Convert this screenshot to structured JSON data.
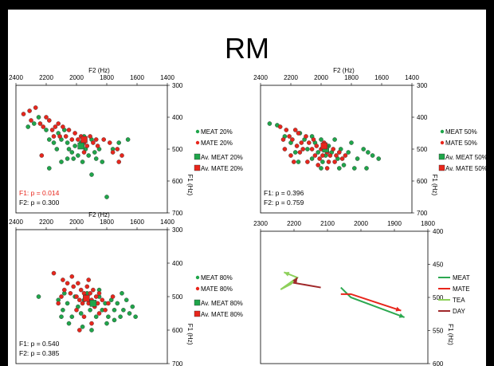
{
  "title": "RM",
  "chart_data": [
    {
      "type": "scatter",
      "xlabel": "F2 (Hz)",
      "ylabel": "F1 (Hz)",
      "xlim": [
        2400,
        1400
      ],
      "ylim": [
        300,
        700
      ],
      "xticks": [
        2400,
        2200,
        2000,
        1800,
        1600,
        1400
      ],
      "yticks": [
        300,
        400,
        500,
        600,
        700
      ],
      "legend": [
        "MEAT 20%",
        "MATE 20%",
        "Av. MEAT 20%",
        "Av. MATE 20%"
      ],
      "stats": [
        {
          "label": "F1: p = 0.014",
          "color": "#e8261c"
        },
        {
          "label": "F2: p = 0.300",
          "color": "#000000"
        }
      ],
      "series": [
        {
          "name": "MEAT 20%",
          "points": [
            [
              2320,
              430
            ],
            [
              2280,
              420
            ],
            [
              2250,
              400
            ],
            [
              2200,
              440
            ],
            [
              2180,
              470
            ],
            [
              2150,
              480
            ],
            [
              2120,
              450
            ],
            [
              2100,
              470
            ],
            [
              2080,
              440
            ],
            [
              2060,
              480
            ],
            [
              2050,
              500
            ],
            [
              2030,
              510
            ],
            [
              2010,
              490
            ],
            [
              1990,
              520
            ],
            [
              1970,
              480
            ],
            [
              1960,
              540
            ],
            [
              1940,
              500
            ],
            [
              1920,
              520
            ],
            [
              1900,
              470
            ],
            [
              1880,
              510
            ],
            [
              1870,
              530
            ],
            [
              1850,
              500
            ],
            [
              1830,
              540
            ],
            [
              1760,
              500
            ],
            [
              1720,
              480
            ],
            [
              1660,
              470
            ],
            [
              2180,
              560
            ],
            [
              2020,
              530
            ],
            [
              1900,
              580
            ],
            [
              1800,
              650
            ],
            [
              2100,
              540
            ],
            [
              1950,
              460
            ],
            [
              2060,
              530
            ],
            [
              2130,
              500
            ]
          ]
        },
        {
          "name": "MATE 20%",
          "points": [
            [
              2350,
              390
            ],
            [
              2310,
              380
            ],
            [
              2300,
              410
            ],
            [
              2270,
              370
            ],
            [
              2240,
              420
            ],
            [
              2220,
              430
            ],
            [
              2200,
              400
            ],
            [
              2180,
              410
            ],
            [
              2160,
              440
            ],
            [
              2140,
              430
            ],
            [
              2120,
              420
            ],
            [
              2110,
              460
            ],
            [
              2090,
              430
            ],
            [
              2070,
              460
            ],
            [
              2050,
              440
            ],
            [
              2030,
              470
            ],
            [
              2010,
              450
            ],
            [
              1990,
              470
            ],
            [
              1970,
              460
            ],
            [
              1950,
              480
            ],
            [
              1930,
              490
            ],
            [
              1910,
              460
            ],
            [
              1890,
              480
            ],
            [
              1870,
              470
            ],
            [
              1860,
              490
            ],
            [
              1780,
              480
            ],
            [
              1760,
              510
            ],
            [
              1730,
              500
            ],
            [
              1700,
              520
            ],
            [
              1720,
              540
            ],
            [
              2230,
              520
            ],
            [
              2150,
              460
            ],
            [
              1950,
              510
            ],
            [
              1820,
              470
            ]
          ]
        },
        {
          "name": "Av. MEAT 20%",
          "points": [
            [
              1970,
              490
            ]
          ]
        },
        {
          "name": "Av. MATE 20%",
          "points": [
            [
              1950,
              470
            ]
          ]
        }
      ]
    },
    {
      "type": "scatter",
      "xlabel": "F2 (Hz)",
      "ylabel": "F1 (Hz)",
      "xlim": [
        2400,
        1400
      ],
      "ylim": [
        300,
        700
      ],
      "xticks": [
        2400,
        2200,
        2000,
        1800,
        1600,
        1400
      ],
      "yticks": [
        300,
        400,
        500,
        600,
        700
      ],
      "legend": [
        "MEAT 50%",
        "MATE 50%",
        "Av. MEAT 50%",
        "Av. MATE 50%"
      ],
      "stats": [
        {
          "label": "F1: p = 0.396",
          "color": "#000000"
        },
        {
          "label": "F2: p = 0.759",
          "color": "#000000"
        }
      ],
      "series": [
        {
          "name": "MEAT 50%",
          "points": [
            [
              2340,
              420
            ],
            [
              2290,
              425
            ],
            [
              2240,
              460
            ],
            [
              2200,
              480
            ],
            [
              2170,
              510
            ],
            [
              2140,
              450
            ],
            [
              2110,
              470
            ],
            [
              2090,
              500
            ],
            [
              2060,
              530
            ],
            [
              2040,
              480
            ],
            [
              2020,
              510
            ],
            [
              2000,
              470
            ],
            [
              1990,
              540
            ],
            [
              1970,
              520
            ],
            [
              1950,
              490
            ],
            [
              1930,
              510
            ],
            [
              1910,
              470
            ],
            [
              1890,
              530
            ],
            [
              1870,
              500
            ],
            [
              1850,
              550
            ],
            [
              1820,
              510
            ],
            [
              1800,
              480
            ],
            [
              1760,
              530
            ],
            [
              1720,
              500
            ],
            [
              1690,
              510
            ],
            [
              1660,
              520
            ],
            [
              2150,
              540
            ],
            [
              2000,
              560
            ],
            [
              1880,
              560
            ],
            [
              2060,
              460
            ],
            [
              1780,
              560
            ],
            [
              1620,
              530
            ],
            [
              1700,
              560
            ]
          ]
        },
        {
          "name": "MATE 50%",
          "points": [
            [
              2270,
              430
            ],
            [
              2250,
              470
            ],
            [
              2230,
              440
            ],
            [
              2210,
              460
            ],
            [
              2190,
              470
            ],
            [
              2170,
              440
            ],
            [
              2160,
              490
            ],
            [
              2150,
              450
            ],
            [
              2130,
              480
            ],
            [
              2120,
              500
            ],
            [
              2100,
              460
            ],
            [
              2080,
              480
            ],
            [
              2060,
              500
            ],
            [
              2050,
              470
            ],
            [
              2040,
              520
            ],
            [
              2030,
              490
            ],
            [
              2010,
              530
            ],
            [
              2000,
              500
            ],
            [
              1990,
              520
            ],
            [
              1980,
              480
            ],
            [
              1960,
              510
            ],
            [
              1950,
              540
            ],
            [
              1940,
              520
            ],
            [
              1920,
              500
            ],
            [
              1910,
              540
            ],
            [
              1900,
              520
            ],
            [
              1880,
              510
            ],
            [
              1860,
              530
            ],
            [
              1840,
              520
            ],
            [
              2200,
              520
            ],
            [
              2180,
              540
            ],
            [
              2140,
              510
            ],
            [
              2090,
              540
            ],
            [
              2020,
              550
            ],
            [
              1960,
              560
            ],
            [
              2240,
              500
            ]
          ]
        },
        {
          "name": "Av. MEAT 50%",
          "points": [
            [
              1970,
              500
            ]
          ]
        },
        {
          "name": "Av. MATE 50%",
          "points": [
            [
              1980,
              490
            ]
          ]
        }
      ]
    },
    {
      "type": "scatter",
      "xlabel": "F2 (Hz)",
      "ylabel": "F1 (Hz)",
      "xlim": [
        2400,
        1400
      ],
      "ylim": [
        300,
        700
      ],
      "xticks": [
        2400,
        2200,
        2000,
        1800,
        1600,
        1400
      ],
      "yticks": [
        300,
        400,
        500,
        600,
        700
      ],
      "legend": [
        "MEAT 80%",
        "MATE 80%",
        "Av. MEAT 80%",
        "Av. MATE 80%"
      ],
      "stats": [
        {
          "label": "F1: p = 0.540",
          "color": "#000000"
        },
        {
          "label": "F2: p = 0.385",
          "color": "#000000"
        }
      ],
      "series": [
        {
          "name": "MEAT 80%",
          "points": [
            [
              2250,
              500
            ],
            [
              2120,
              510
            ],
            [
              2090,
              540
            ],
            [
              2060,
              520
            ],
            [
              2030,
              560
            ],
            [
              2010,
              500
            ],
            [
              1990,
              530
            ],
            [
              1970,
              550
            ],
            [
              1950,
              510
            ],
            [
              1930,
              490
            ],
            [
              1910,
              540
            ],
            [
              1890,
              520
            ],
            [
              1870,
              560
            ],
            [
              1850,
              500
            ],
            [
              1830,
              540
            ],
            [
              1810,
              520
            ],
            [
              1790,
              560
            ],
            [
              1770,
              510
            ],
            [
              1750,
              540
            ],
            [
              1730,
              520
            ],
            [
              1710,
              560
            ],
            [
              1690,
              540
            ],
            [
              1670,
              510
            ],
            [
              1650,
              550
            ],
            [
              1630,
              530
            ],
            [
              1610,
              560
            ],
            [
              1800,
              580
            ],
            [
              1750,
              570
            ],
            [
              2050,
              580
            ],
            [
              1900,
              600
            ],
            [
              2100,
              560
            ],
            [
              1960,
              590
            ],
            [
              1700,
              490
            ],
            [
              1850,
              480
            ],
            [
              2080,
              490
            ]
          ]
        },
        {
          "name": "MATE 80%",
          "points": [
            [
              2150,
              430
            ],
            [
              2090,
              450
            ],
            [
              2080,
              480
            ],
            [
              2060,
              460
            ],
            [
              2040,
              490
            ],
            [
              2020,
              470
            ],
            [
              2000,
              500
            ],
            [
              1990,
              460
            ],
            [
              1980,
              510
            ],
            [
              1970,
              480
            ],
            [
              1960,
              520
            ],
            [
              1950,
              490
            ],
            [
              1940,
              500
            ],
            [
              1930,
              470
            ],
            [
              1920,
              520
            ],
            [
              1910,
              490
            ],
            [
              1900,
              510
            ],
            [
              1890,
              480
            ],
            [
              1880,
              530
            ],
            [
              1870,
              500
            ],
            [
              1860,
              520
            ],
            [
              1850,
              490
            ],
            [
              1830,
              510
            ],
            [
              1810,
              540
            ],
            [
              1790,
              520
            ],
            [
              2120,
              520
            ],
            [
              2100,
              500
            ],
            [
              2000,
              540
            ],
            [
              1950,
              560
            ],
            [
              1900,
              580
            ],
            [
              1980,
              600
            ],
            [
              1850,
              550
            ],
            [
              1760,
              500
            ],
            [
              2030,
              440
            ],
            [
              1920,
              450
            ]
          ]
        },
        {
          "name": "Av. MEAT 80%",
          "points": [
            [
              1890,
              520
            ]
          ]
        },
        {
          "name": "Av. MATE 80%",
          "points": [
            [
              1935,
              505
            ]
          ]
        }
      ]
    },
    {
      "type": "line",
      "xlabel": "",
      "ylabel": "F1 (Hz)",
      "xlim": [
        2300,
        1800
      ],
      "ylim": [
        400,
        600
      ],
      "xticks": [
        2300,
        2200,
        2100,
        2000,
        1900,
        1800
      ],
      "yticks": [
        400,
        450,
        500,
        550,
        600
      ],
      "legend": [
        "MEAT",
        "MATE",
        "TEA",
        "DAY"
      ],
      "stats": [],
      "series": [
        {
          "name": "MEAT",
          "color": "#2ca850",
          "points": [
            [
              2060,
              485
            ],
            [
              2030,
              500
            ],
            [
              1870,
              530
            ]
          ]
        },
        {
          "name": "MATE",
          "color": "#e8261c",
          "points": [
            [
              2060,
              495
            ],
            [
              2030,
              495
            ],
            [
              1880,
              520
            ]
          ]
        },
        {
          "name": "TEA",
          "color": "#8dd05a",
          "points": [
            [
              2190,
              470
            ],
            [
              2240,
              488
            ],
            [
              2210,
              480
            ],
            [
              2190,
              470
            ],
            [
              2230,
              462
            ]
          ]
        },
        {
          "name": "DAY",
          "color": "#a0282a",
          "points": [
            [
              2120,
              485
            ],
            [
              2200,
              478
            ],
            [
              2190,
              470
            ]
          ]
        }
      ]
    }
  ]
}
